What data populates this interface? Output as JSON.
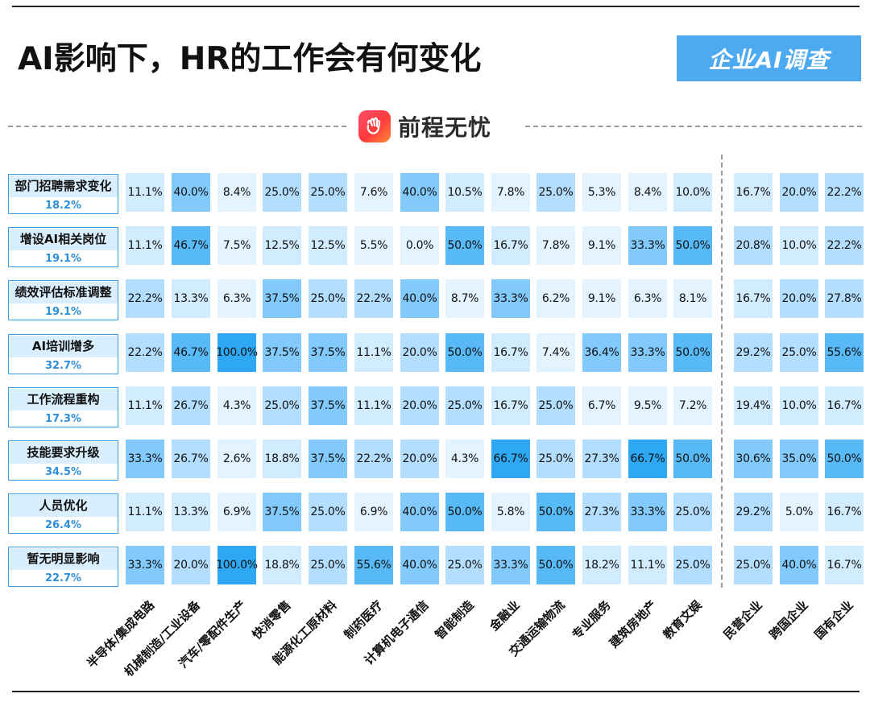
{
  "header": {
    "title": "AI影响下，HR的工作会有何变化",
    "badge": "企业AI调查",
    "logo_text": "前程无忧",
    "logo_icon": "hand-wave-icon"
  },
  "colors": {
    "heat_low": "#e3f3ff",
    "heat_mid": "#9ad3ff",
    "heat_high": "#22a3f0",
    "label_border": "#3a9ee6",
    "label_pct": "#2f8fd8",
    "badge_bg": "#4eaaf0"
  },
  "chart_data": {
    "type": "heatmap",
    "title": "AI影响下，HR的工作会有何变化",
    "columns": [
      "半导体/集成电路",
      "机械制造/工业设备",
      "汽车/零配件生产",
      "快消零售",
      "能源化工原材料",
      "制药医疗",
      "计算机电子通信",
      "智能制造",
      "金融业",
      "交通运输物流",
      "专业服务",
      "建筑房地产",
      "教育文娱",
      "民营企业",
      "跨国企业",
      "国有企业"
    ],
    "column_groups": [
      {
        "name": "industry",
        "count": 13
      },
      {
        "name": "ownership",
        "count": 3
      }
    ],
    "rows": [
      {
        "name": "部门招聘需求变化",
        "overall": "18.2%",
        "values": [
          "11.1%",
          "40.0%",
          "8.4%",
          "25.0%",
          "25.0%",
          "7.6%",
          "40.0%",
          "10.5%",
          "7.8%",
          "25.0%",
          "5.3%",
          "8.4%",
          "10.0%",
          "16.7%",
          "20.0%",
          "22.2%"
        ]
      },
      {
        "name": "增设AI相关岗位",
        "overall": "19.1%",
        "values": [
          "11.1%",
          "46.7%",
          "7.5%",
          "12.5%",
          "12.5%",
          "5.5%",
          "0.0%",
          "50.0%",
          "16.7%",
          "7.8%",
          "9.1%",
          "33.3%",
          "50.0%",
          "20.8%",
          "10.0%",
          "22.2%"
        ]
      },
      {
        "name": "绩效评估标准调整",
        "overall": "19.1%",
        "values": [
          "22.2%",
          "13.3%",
          "6.3%",
          "37.5%",
          "25.0%",
          "22.2%",
          "40.0%",
          "8.7%",
          "33.3%",
          "6.2%",
          "9.1%",
          "6.3%",
          "8.1%",
          "16.7%",
          "20.0%",
          "27.8%"
        ]
      },
      {
        "name": "AI培训增多",
        "overall": "32.7%",
        "values": [
          "22.2%",
          "46.7%",
          "100.0%",
          "37.5%",
          "37.5%",
          "11.1%",
          "20.0%",
          "50.0%",
          "16.7%",
          "7.4%",
          "36.4%",
          "33.3%",
          "50.0%",
          "29.2%",
          "25.0%",
          "55.6%"
        ]
      },
      {
        "name": "工作流程重构",
        "overall": "17.3%",
        "values": [
          "11.1%",
          "26.7%",
          "4.3%",
          "25.0%",
          "37.5%",
          "11.1%",
          "20.0%",
          "25.0%",
          "16.7%",
          "25.0%",
          "6.7%",
          "9.5%",
          "7.2%",
          "19.4%",
          "10.0%",
          "16.7%"
        ]
      },
      {
        "name": "技能要求升级",
        "overall": "34.5%",
        "values": [
          "33.3%",
          "26.7%",
          "2.6%",
          "18.8%",
          "37.5%",
          "22.2%",
          "20.0%",
          "4.3%",
          "66.7%",
          "25.0%",
          "27.3%",
          "66.7%",
          "50.0%",
          "30.6%",
          "35.0%",
          "50.0%"
        ]
      },
      {
        "name": "人员优化",
        "overall": "26.4%",
        "values": [
          "11.1%",
          "13.3%",
          "6.9%",
          "37.5%",
          "25.0%",
          "6.9%",
          "40.0%",
          "50.0%",
          "5.8%",
          "50.0%",
          "27.3%",
          "33.3%",
          "25.0%",
          "29.2%",
          "5.0%",
          "16.7%"
        ]
      },
      {
        "name": "暂无明显影响",
        "overall": "22.7%",
        "values": [
          "33.3%",
          "20.0%",
          "100.0%",
          "18.8%",
          "25.0%",
          "55.6%",
          "40.0%",
          "25.0%",
          "33.3%",
          "50.0%",
          "18.2%",
          "11.1%",
          "25.0%",
          "25.0%",
          "40.0%",
          "16.7%"
        ]
      }
    ],
    "grid": false,
    "legend": "none"
  }
}
